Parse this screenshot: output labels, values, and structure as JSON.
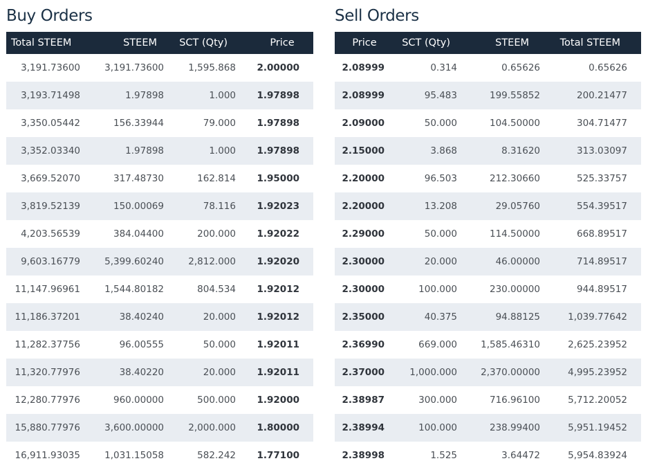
{
  "buy_orders": {
    "title": "Buy Orders",
    "headers": [
      "Total STEEM",
      "STEEM",
      "SCT (Qty)",
      "Price"
    ],
    "rows": [
      [
        "3,191.73600",
        "3,191.73600",
        "1,595.868",
        "2.00000"
      ],
      [
        "3,193.71498",
        "1.97898",
        "1.000",
        "1.97898"
      ],
      [
        "3,350.05442",
        "156.33944",
        "79.000",
        "1.97898"
      ],
      [
        "3,352.03340",
        "1.97898",
        "1.000",
        "1.97898"
      ],
      [
        "3,669.52070",
        "317.48730",
        "162.814",
        "1.95000"
      ],
      [
        "3,819.52139",
        "150.00069",
        "78.116",
        "1.92023"
      ],
      [
        "4,203.56539",
        "384.04400",
        "200.000",
        "1.92022"
      ],
      [
        "9,603.16779",
        "5,399.60240",
        "2,812.000",
        "1.92020"
      ],
      [
        "11,147.96961",
        "1,544.80182",
        "804.534",
        "1.92012"
      ],
      [
        "11,186.37201",
        "38.40240",
        "20.000",
        "1.92012"
      ],
      [
        "11,282.37756",
        "96.00555",
        "50.000",
        "1.92011"
      ],
      [
        "11,320.77976",
        "38.40220",
        "20.000",
        "1.92011"
      ],
      [
        "12,280.77976",
        "960.00000",
        "500.000",
        "1.92000"
      ],
      [
        "15,880.77976",
        "3,600.00000",
        "2,000.000",
        "1.80000"
      ],
      [
        "16,911.93035",
        "1,031.15058",
        "582.242",
        "1.77100"
      ]
    ]
  },
  "sell_orders": {
    "title": "Sell Orders",
    "headers": [
      "Price",
      "SCT (Qty)",
      "STEEM",
      "Total STEEM"
    ],
    "rows": [
      [
        "2.08999",
        "0.314",
        "0.65626",
        "0.65626"
      ],
      [
        "2.08999",
        "95.483",
        "199.55852",
        "200.21477"
      ],
      [
        "2.09000",
        "50.000",
        "104.50000",
        "304.71477"
      ],
      [
        "2.15000",
        "3.868",
        "8.31620",
        "313.03097"
      ],
      [
        "2.20000",
        "96.503",
        "212.30660",
        "525.33757"
      ],
      [
        "2.20000",
        "13.208",
        "29.05760",
        "554.39517"
      ],
      [
        "2.29000",
        "50.000",
        "114.50000",
        "668.89517"
      ],
      [
        "2.30000",
        "20.000",
        "46.00000",
        "714.89517"
      ],
      [
        "2.30000",
        "100.000",
        "230.00000",
        "944.89517"
      ],
      [
        "2.35000",
        "40.375",
        "94.88125",
        "1,039.77642"
      ],
      [
        "2.36990",
        "669.000",
        "1,585.46310",
        "2,625.23952"
      ],
      [
        "2.37000",
        "1,000.000",
        "2,370.00000",
        "4,995.23952"
      ],
      [
        "2.38987",
        "300.000",
        "716.96100",
        "5,712.20052"
      ],
      [
        "2.38994",
        "100.000",
        "238.99400",
        "5,951.19452"
      ],
      [
        "2.38998",
        "1.525",
        "3.64472",
        "5,954.83924"
      ]
    ]
  },
  "colors": {
    "header_bg": "#1b2a3b",
    "title_text": "#1b3146",
    "stripe_bg": "#e9edf2"
  }
}
